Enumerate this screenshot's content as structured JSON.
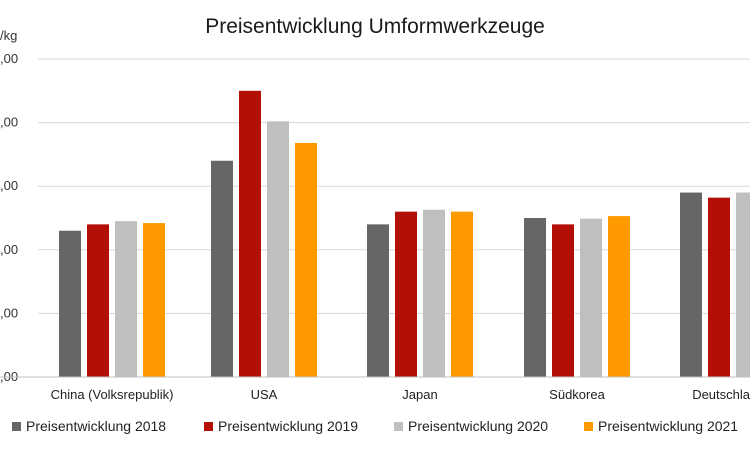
{
  "chart_data": {
    "type": "bar",
    "title": "Preisentwicklung Umformwerkzeuge",
    "ylabel_visible": "/kg",
    "y_tick_labels": [
      ",00",
      ",00",
      ",00",
      ",00",
      ",00",
      ",00"
    ],
    "ylim": [
      0,
      5
    ],
    "grid": true,
    "legend_position": "bottom",
    "categories": [
      "China (Volksrepublik)",
      "USA",
      "Japan",
      "Südkorea",
      "Deutschla"
    ],
    "series": [
      {
        "name": "Preisentwicklung 2018",
        "color": "#666666",
        "values": [
          2.3,
          3.4,
          2.4,
          2.5,
          2.9
        ]
      },
      {
        "name": "Preisentwicklung 2019",
        "color": "#b40f06",
        "values": [
          2.4,
          4.5,
          2.6,
          2.4,
          2.82
        ]
      },
      {
        "name": "Preisentwicklung 2020",
        "color": "#bfbfbf",
        "values": [
          2.45,
          4.02,
          2.63,
          2.49,
          2.9
        ]
      },
      {
        "name": "Preisentwicklung 2021",
        "color": "#ff9900",
        "values": [
          2.42,
          3.68,
          2.6,
          2.53,
          null
        ]
      }
    ]
  }
}
